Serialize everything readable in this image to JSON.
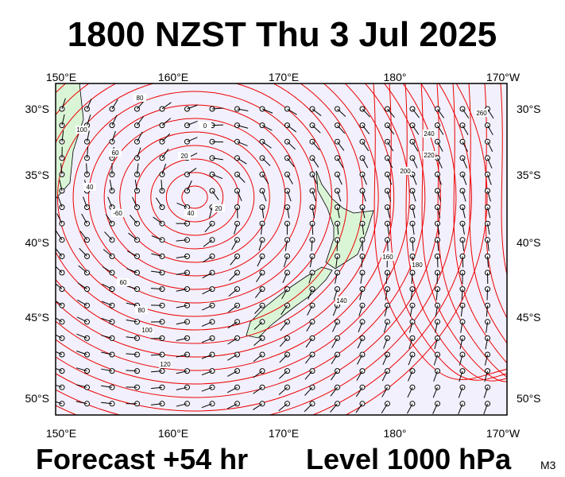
{
  "header": {
    "title": "1800 NZST Thu 3 Jul 2025"
  },
  "map": {
    "lon_labels": [
      "150°E",
      "160°E",
      "170°E",
      "180°",
      "170°W"
    ],
    "lat_labels": [
      "30°S",
      "35°S",
      "40°S",
      "45°S",
      "50°S"
    ],
    "contour_labels": [
      "80",
      "100",
      "60",
      "40",
      "20",
      "0",
      "-60",
      "40",
      "20",
      "60",
      "80",
      "100",
      "120",
      "140",
      "160",
      "180",
      "200",
      "220",
      "240",
      "260"
    ]
  },
  "footer": {
    "forecast": "Forecast +54 hr",
    "level": "Level 1000 hPa",
    "model": "M3"
  }
}
